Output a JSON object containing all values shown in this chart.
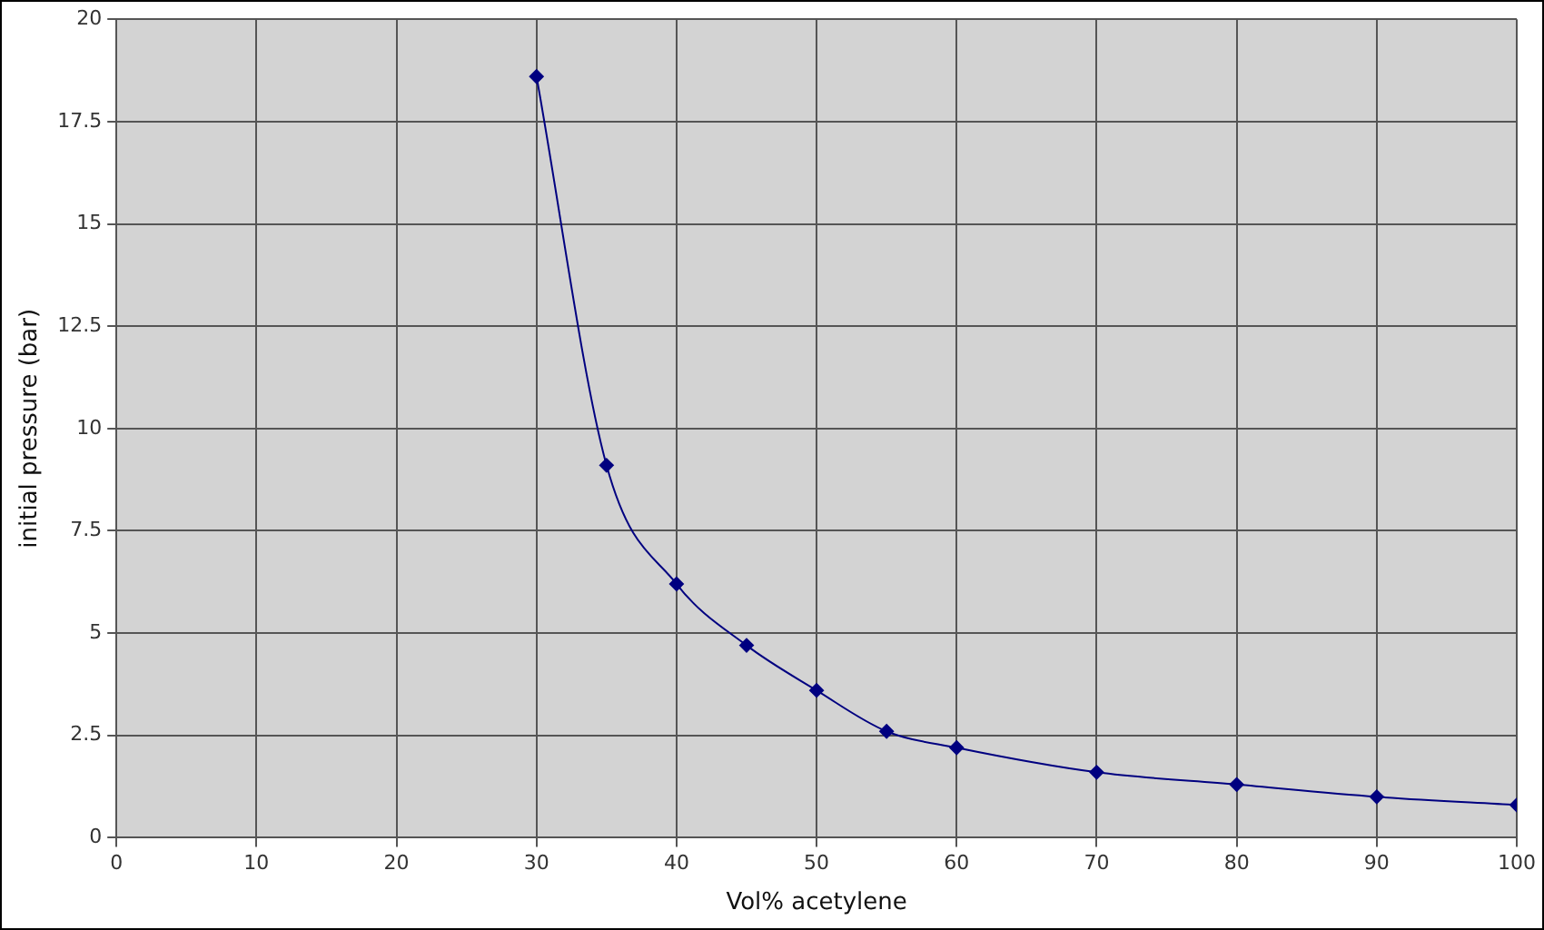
{
  "chart_data": {
    "type": "line",
    "xlabel": "Vol% acetylene",
    "ylabel": "initial pressure (bar)",
    "x": [
      30,
      35,
      40,
      45,
      50,
      55,
      60,
      70,
      80,
      90,
      100
    ],
    "series": [
      {
        "color": "#000080",
        "values": [
          18.6,
          9.1,
          6.2,
          4.7,
          3.6,
          2.6,
          2.2,
          1.6,
          1.3,
          1.0,
          0.8
        ]
      }
    ],
    "xlim": [
      0,
      100
    ],
    "xticks": [
      0,
      10,
      20,
      30,
      40,
      50,
      60,
      70,
      80,
      90,
      100
    ],
    "ylim": [
      0,
      20
    ],
    "yticks": [
      0,
      2.5,
      5,
      7.5,
      10,
      12.5,
      15,
      17.5,
      20
    ],
    "grid": true,
    "legend": false,
    "marker": "diamond",
    "line_style": "solid"
  }
}
